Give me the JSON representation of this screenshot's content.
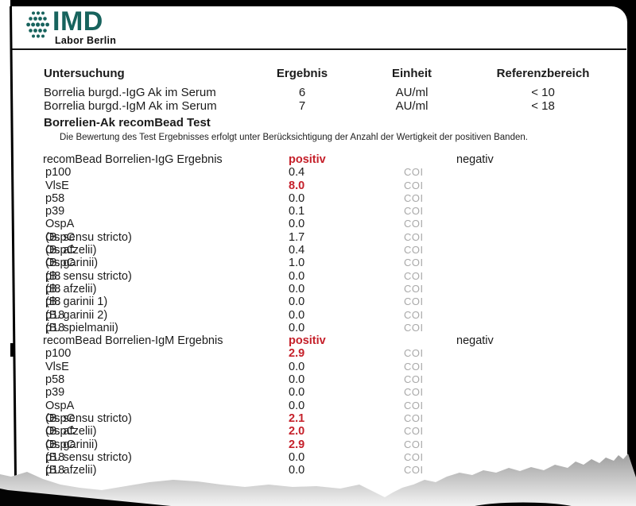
{
  "colors": {
    "teal": "#17635d",
    "abnormal_red": "#c5202a",
    "unit_gray": "#a9a9a9",
    "paper": "#ffffff",
    "photo_black": "#000000",
    "shadow_gray": "#a0a0a0"
  },
  "logo": {
    "brand": "IMD",
    "subtitle": "Labor Berlin"
  },
  "summary_table": {
    "headers": [
      "Untersuchung",
      "Ergebnis",
      "Einheit",
      "Referenzbereich"
    ],
    "rows": [
      {
        "name": "Borrelia burgd.-IgG Ak im Serum",
        "result": "6",
        "unit": "AU/ml",
        "reference": "< 10"
      },
      {
        "name": "Borrelia burgd.-IgM Ak im Serum",
        "result": "7",
        "unit": "AU/ml",
        "reference": "< 18"
      }
    ]
  },
  "section": {
    "title": "Borrelien-Ak recomBead Test",
    "note": "Die Bewertung des Test Ergebnisses erfolgt unter Berücksichtigung der Anzahl der Wertigkeit der positiven Banden."
  },
  "bead_rows": [
    {
      "kind": "result",
      "label": "recomBead Borrelien-IgG Ergebnis",
      "qualifier": "",
      "value": "positiv",
      "unit": "",
      "reference": "negativ",
      "abnormal": true
    },
    {
      "kind": "antigen",
      "label": "p100",
      "qualifier": "",
      "value": "0.4",
      "unit": "COI",
      "reference": "",
      "abnormal": false
    },
    {
      "kind": "antigen",
      "label": "VlsE",
      "qualifier": "",
      "value": "8.0",
      "unit": "COI",
      "reference": "",
      "abnormal": true
    },
    {
      "kind": "antigen",
      "label": "p58",
      "qualifier": "",
      "value": "0.0",
      "unit": "COI",
      "reference": "",
      "abnormal": false
    },
    {
      "kind": "antigen",
      "label": "p39",
      "qualifier": "",
      "value": "0.1",
      "unit": "COI",
      "reference": "",
      "abnormal": false
    },
    {
      "kind": "antigen",
      "label": "OspA",
      "qualifier": "",
      "value": "0.0",
      "unit": "COI",
      "reference": "",
      "abnormal": false
    },
    {
      "kind": "antigen",
      "label": "OspC",
      "qualifier": "(B. sensu stricto)",
      "value": "1.7",
      "unit": "COI",
      "reference": "",
      "abnormal": false
    },
    {
      "kind": "antigen",
      "label": "OspC",
      "qualifier": "(B. afzelii)",
      "value": "0.4",
      "unit": "COI",
      "reference": "",
      "abnormal": false
    },
    {
      "kind": "antigen",
      "label": "OspC",
      "qualifier": "(B. garinii)",
      "value": "1.0",
      "unit": "COI",
      "reference": "",
      "abnormal": false
    },
    {
      "kind": "antigen",
      "label": "pl8",
      "qualifier": "(B. sensu stricto)",
      "value": "0.0",
      "unit": "COI",
      "reference": "",
      "abnormal": false
    },
    {
      "kind": "antigen",
      "label": "pl8",
      "qualifier": "(B. afzelii)",
      "value": "0.0",
      "unit": "COI",
      "reference": "",
      "abnormal": false
    },
    {
      "kind": "antigen",
      "label": "pl8",
      "qualifier": "(B. garinii 1)",
      "value": "0.0",
      "unit": "COI",
      "reference": "",
      "abnormal": false
    },
    {
      "kind": "antigen",
      "label": "p18",
      "qualifier": "(B. garinii 2)",
      "value": "0.0",
      "unit": "COI",
      "reference": "",
      "abnormal": false
    },
    {
      "kind": "antigen",
      "label": "p18",
      "qualifier": "(B. spielmanii)",
      "value": "0.0",
      "unit": "COI",
      "reference": "",
      "abnormal": false
    },
    {
      "kind": "result",
      "label": "recomBead Borrelien-IgM Ergebnis",
      "qualifier": "",
      "value": "positiv",
      "unit": "",
      "reference": "negativ",
      "abnormal": true
    },
    {
      "kind": "antigen",
      "label": "p100",
      "qualifier": "",
      "value": "2.9",
      "unit": "COI",
      "reference": "",
      "abnormal": true
    },
    {
      "kind": "antigen",
      "label": "VlsE",
      "qualifier": "",
      "value": "0.0",
      "unit": "COI",
      "reference": "",
      "abnormal": false
    },
    {
      "kind": "antigen",
      "label": "p58",
      "qualifier": "",
      "value": "0.0",
      "unit": "COI",
      "reference": "",
      "abnormal": false
    },
    {
      "kind": "antigen",
      "label": "p39",
      "qualifier": "",
      "value": "0.0",
      "unit": "COI",
      "reference": "",
      "abnormal": false
    },
    {
      "kind": "antigen",
      "label": "OspA",
      "qualifier": "",
      "value": "0.0",
      "unit": "COI",
      "reference": "",
      "abnormal": false
    },
    {
      "kind": "antigen",
      "label": "OspC",
      "qualifier": "(B. sensu stricto)",
      "value": "2.1",
      "unit": "COI",
      "reference": "",
      "abnormal": true
    },
    {
      "kind": "antigen",
      "label": "OspC",
      "qualifier": "(B. afzelii)",
      "value": "2.0",
      "unit": "COI",
      "reference": "",
      "abnormal": true
    },
    {
      "kind": "antigen",
      "label": "OspC",
      "qualifier": "(B. garinii)",
      "value": "2.9",
      "unit": "COI",
      "reference": "",
      "abnormal": true
    },
    {
      "kind": "antigen",
      "label": "p18",
      "qualifier": "(B. sensu stricto)",
      "value": "0.0",
      "unit": "COI",
      "reference": "",
      "abnormal": false
    },
    {
      "kind": "antigen",
      "label": "p18",
      "qualifier": "(B. afzelii)",
      "value": "0.0",
      "unit": "COI",
      "reference": "",
      "abnormal": false
    }
  ]
}
